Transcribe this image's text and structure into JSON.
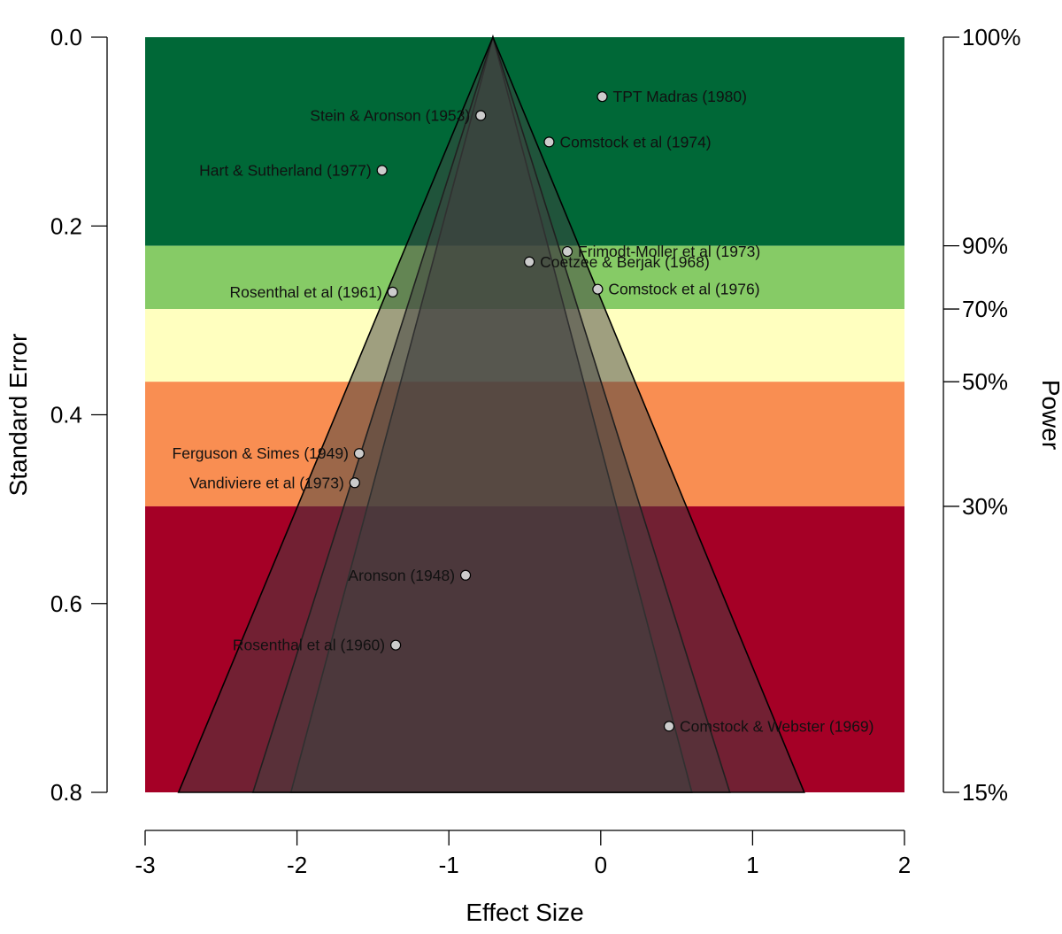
{
  "chart_data": {
    "type": "scatter",
    "subtype": "sunset-funnel-plot",
    "xlabel": "Effect Size",
    "ylabel": "Standard Error",
    "y2label": "Power",
    "xlim": [
      -3,
      2
    ],
    "ylim": [
      0.8,
      0.0
    ],
    "x_ticks": [
      -3,
      -2,
      -1,
      0,
      1,
      2
    ],
    "x_tick_labels": [
      "-3",
      "-2",
      "-1",
      "0",
      "1",
      "2"
    ],
    "y_ticks": [
      0.0,
      0.2,
      0.4,
      0.6,
      0.8
    ],
    "y_tick_labels": [
      "0.0",
      "0.2",
      "0.4",
      "0.6",
      "0.8"
    ],
    "power_ticks": [
      {
        "se": 0.0,
        "label": "100%"
      },
      {
        "se": 0.221,
        "label": "90%"
      },
      {
        "se": 0.288,
        "label": "70%"
      },
      {
        "se": 0.365,
        "label": "50%"
      },
      {
        "se": 0.497,
        "label": "30%"
      },
      {
        "se": 0.8,
        "label": "15%"
      }
    ],
    "power_bands": [
      {
        "se_from": 0.0,
        "se_to": 0.221,
        "color": "#006837"
      },
      {
        "se_from": 0.221,
        "se_to": 0.288,
        "color": "#86cb66"
      },
      {
        "se_from": 0.288,
        "se_to": 0.365,
        "color": "#ffffbf"
      },
      {
        "se_from": 0.365,
        "se_to": 0.497,
        "color": "#f98e52"
      },
      {
        "se_from": 0.497,
        "se_to": 0.8,
        "color": "#a50026"
      }
    ],
    "funnel_apex": -0.71,
    "funnel_bounds": [
      {
        "left": -2.04,
        "right": 0.6
      },
      {
        "left": -2.29,
        "right": 0.85
      },
      {
        "left": -2.78,
        "right": 1.34
      }
    ],
    "funnel_fill": "#404040",
    "funnel_fill_opacity": 0.5,
    "points": [
      {
        "label": "TPT Madras (1980)",
        "x": 0.01,
        "se": 0.063,
        "side": "right"
      },
      {
        "label": "Stein & Aronson (1953)",
        "x": -0.79,
        "se": 0.083,
        "side": "left"
      },
      {
        "label": "Comstock et al (1974)",
        "x": -0.34,
        "se": 0.111,
        "side": "right"
      },
      {
        "label": "Hart & Sutherland (1977)",
        "x": -1.44,
        "se": 0.141,
        "side": "left"
      },
      {
        "label": "Frimodt-Moller et al (1973)",
        "x": -0.22,
        "se": 0.227,
        "side": "right"
      },
      {
        "label": "Coetzee & Berjak (1968)",
        "x": -0.47,
        "se": 0.238,
        "side": "right"
      },
      {
        "label": "Rosenthal et al (1961)",
        "x": -1.37,
        "se": 0.27,
        "side": "left"
      },
      {
        "label": "Comstock et al (1976)",
        "x": -0.02,
        "se": 0.267,
        "side": "right"
      },
      {
        "label": "Ferguson & Simes (1949)",
        "x": -1.59,
        "se": 0.441,
        "side": "left"
      },
      {
        "label": "Vandiviere et al (1973)",
        "x": -1.62,
        "se": 0.472,
        "side": "left"
      },
      {
        "label": "Aronson (1948)",
        "x": -0.89,
        "se": 0.57,
        "side": "left"
      },
      {
        "label": "Rosenthal et al (1960)",
        "x": -1.35,
        "se": 0.644,
        "side": "left"
      },
      {
        "label": "Comstock & Webster (1969)",
        "x": 0.45,
        "se": 0.73,
        "side": "right"
      }
    ],
    "point_color": "#cccccc",
    "grid": false
  }
}
